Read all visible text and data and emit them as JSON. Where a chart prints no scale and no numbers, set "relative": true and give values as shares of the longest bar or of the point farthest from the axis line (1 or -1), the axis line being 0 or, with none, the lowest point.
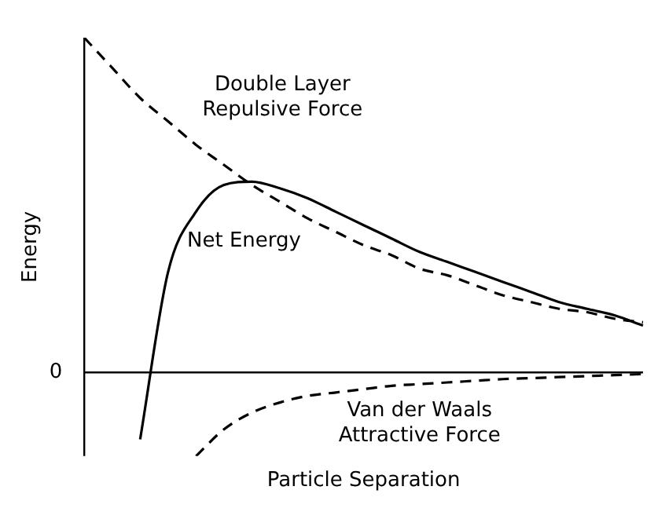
{
  "chart_data": {
    "type": "line",
    "relative": true,
    "xlabel": "Particle Separation",
    "ylabel": "Energy",
    "legend": false,
    "grid": false,
    "categories": [
      null,
      null,
      null,
      null,
      null,
      null,
      null,
      null,
      null,
      null,
      null,
      null,
      null,
      null,
      null,
      null,
      null,
      null,
      null,
      null,
      null
    ],
    "series": [
      {
        "name": "Double Layer Repulsive Force",
        "color": "#000000",
        "line_style": "dashed",
        "values": [
          1,
          0.91,
          0.82,
          0.75,
          0.68,
          0.62,
          0.56,
          0.51,
          0.46,
          0.42,
          0.38,
          0.35,
          0.31,
          0.29,
          0.26,
          0.23,
          0.21,
          0.19,
          0.18,
          0.16,
          0.15
        ]
      },
      {
        "name": "Net Energy",
        "color": "#000000",
        "line_style": "solid",
        "values": [
          null,
          null,
          -0.2,
          0.3,
          0.48,
          0.56,
          0.57,
          0.55,
          0.52,
          0.48,
          0.44,
          0.4,
          0.36,
          0.33,
          0.3,
          0.27,
          0.24,
          0.21,
          0.19,
          0.17,
          0.14
        ]
      },
      {
        "name": "Van der Waals Attractive Force",
        "color": "#000000",
        "line_style": "dashed",
        "values": [
          null,
          null,
          null,
          null,
          -0.25,
          -0.17,
          -0.12,
          -0.09,
          -0.07,
          -0.06,
          -0.05,
          -0.04,
          -0.035,
          -0.03,
          -0.025,
          -0.02,
          -0.017,
          -0.014,
          -0.011,
          -0.008,
          -0.005
        ]
      }
    ],
    "annotations": [
      "0"
    ]
  }
}
